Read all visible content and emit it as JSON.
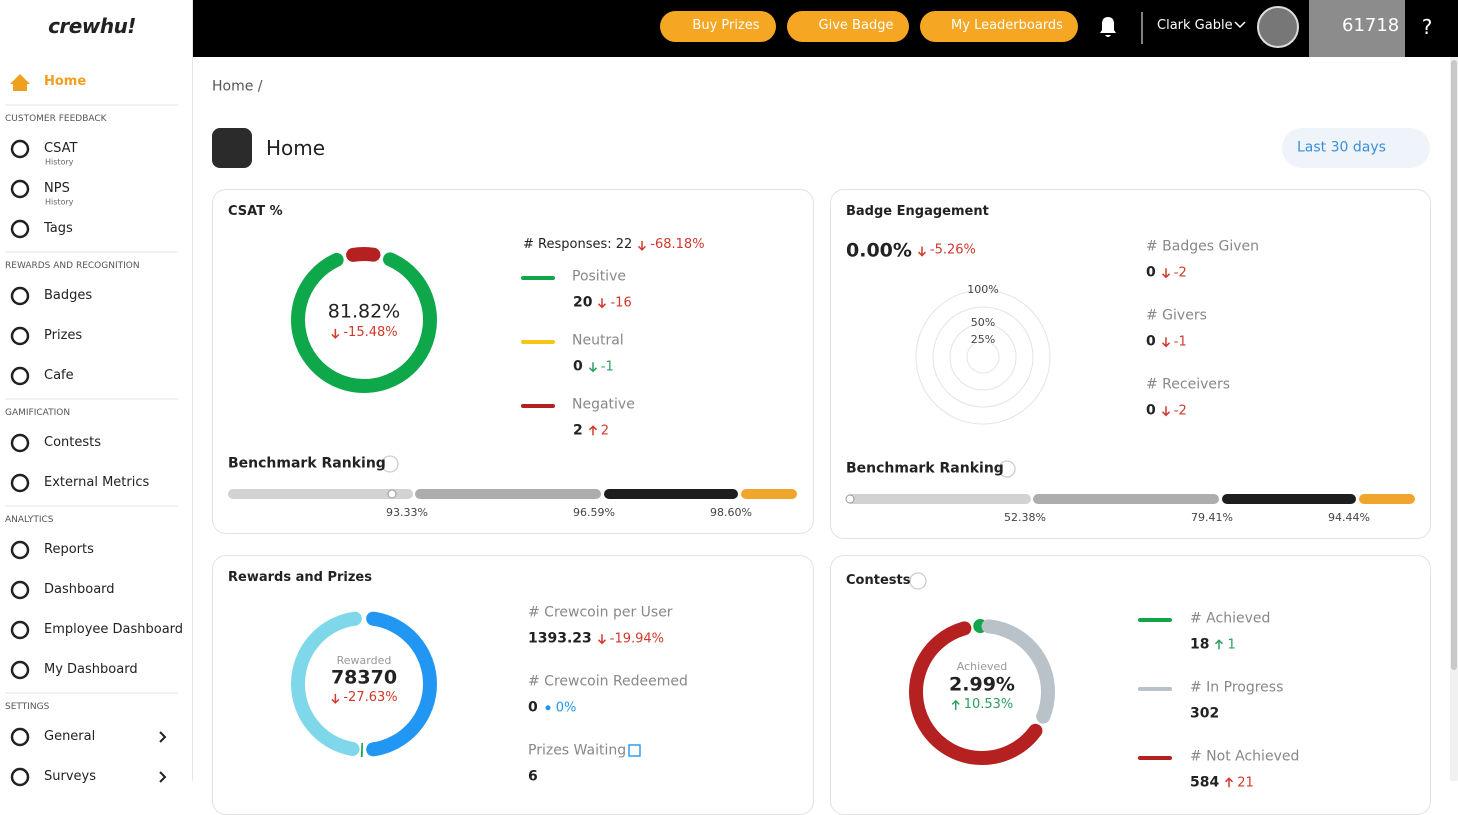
{
  "brand": "crewhu!",
  "topbar": {
    "buttons": [
      "Buy Prizes",
      "Give Badge",
      "My Leaderboards"
    ],
    "user": "Clark Gable",
    "coins": "61718",
    "help": "?"
  },
  "sidebar": {
    "home": "Home",
    "sections": [
      {
        "title": "CUSTOMER FEEDBACK",
        "items": [
          {
            "label": "CSAT",
            "sub": "History"
          },
          {
            "label": "NPS",
            "sub": "History"
          },
          {
            "label": "Tags"
          }
        ]
      },
      {
        "title": "REWARDS AND RECOGNITION",
        "items": [
          {
            "label": "Badges"
          },
          {
            "label": "Prizes"
          },
          {
            "label": "Cafe"
          }
        ]
      },
      {
        "title": "GAMIFICATION",
        "items": [
          {
            "label": "Contests"
          },
          {
            "label": "External Metrics"
          }
        ]
      },
      {
        "title": "ANALYTICS",
        "items": [
          {
            "label": "Reports"
          },
          {
            "label": "Dashboard"
          },
          {
            "label": "Employee Dashboard"
          },
          {
            "label": "My Dashboard"
          }
        ]
      },
      {
        "title": "SETTINGS",
        "items": [
          {
            "label": "General",
            "expandable": true
          },
          {
            "label": "Surveys",
            "expandable": true
          }
        ]
      }
    ]
  },
  "breadcrumb": "Home /",
  "page": {
    "title": "Home",
    "range": "Last 30 days"
  },
  "csat": {
    "title": "CSAT %",
    "center": {
      "value": "81.82%",
      "change": "-15.48%",
      "trend": "down",
      "color": "#cf3a2c"
    },
    "responses": {
      "label": "# Responses: 22",
      "change": "-68.18%",
      "trend": "down",
      "color": "#cf3a2c"
    },
    "legend": [
      {
        "name": "Positive",
        "count": 20,
        "change": "-16",
        "trend": "down",
        "color": "#cf3a2c",
        "swatch": "#0ea84a"
      },
      {
        "name": "Neutral",
        "count": 0,
        "change": "-1",
        "trend": "down",
        "color": "#2e9e5e",
        "swatch": "#f5c518"
      },
      {
        "name": "Negative",
        "count": 2,
        "change": "2",
        "trend": "up",
        "color": "#cf3a2c",
        "swatch": "#b52121"
      }
    ],
    "benchmark": {
      "title": "Benchmark Ranking",
      "labels": [
        "93.33%",
        "96.59%",
        "98.60%"
      ]
    }
  },
  "badge": {
    "title": "Badge Engagement",
    "center": {
      "value": "0.00%",
      "change": "-5.26%",
      "trend": "down",
      "color": "#cf3a2c"
    },
    "radial": [
      "100%",
      "50%",
      "25%"
    ],
    "stats": [
      {
        "label": "# Badges Given",
        "value": "0",
        "change": "-2",
        "trend": "down",
        "color": "#cf3a2c"
      },
      {
        "label": "# Givers",
        "value": "0",
        "change": "-1",
        "trend": "down",
        "color": "#cf3a2c"
      },
      {
        "label": "# Receivers",
        "value": "0",
        "change": "-2",
        "trend": "down",
        "color": "#cf3a2c"
      }
    ],
    "benchmark": {
      "title": "Benchmark Ranking",
      "labels": [
        "52.38%",
        "79.41%",
        "94.44%"
      ]
    }
  },
  "rewards": {
    "title": "Rewards and Prizes",
    "center": {
      "label": "Rewarded",
      "value": "78370",
      "change": "-27.63%",
      "trend": "down",
      "color": "#cf3a2c"
    },
    "stats": [
      {
        "label": "# Crewcoin per User",
        "value": "1393.23",
        "change": "-19.94%",
        "trend": "down",
        "color": "#cf3a2c"
      },
      {
        "label": "# Crewcoin Redeemed",
        "value": "0",
        "change": "0%",
        "trend": "flat",
        "color": "#2196f3"
      },
      {
        "label": "Prizes Waiting",
        "value": "6"
      }
    ]
  },
  "contests": {
    "title": "Contests",
    "center": {
      "label": "Achieved",
      "value": "2.99%",
      "change": "10.53%",
      "trend": "up",
      "color": "#2e9e5e"
    },
    "legend": [
      {
        "name": "# Achieved",
        "count": 18,
        "change": "1",
        "trend": "up",
        "color": "#2e9e5e",
        "swatch": "#13a54a"
      },
      {
        "name": "# In Progress",
        "count": 302,
        "swatch": "#b8c2c8"
      },
      {
        "name": "# Not Achieved",
        "count": 584,
        "change": "21",
        "trend": "up",
        "color": "#cf3a2c",
        "swatch": "#b52121"
      }
    ]
  }
}
